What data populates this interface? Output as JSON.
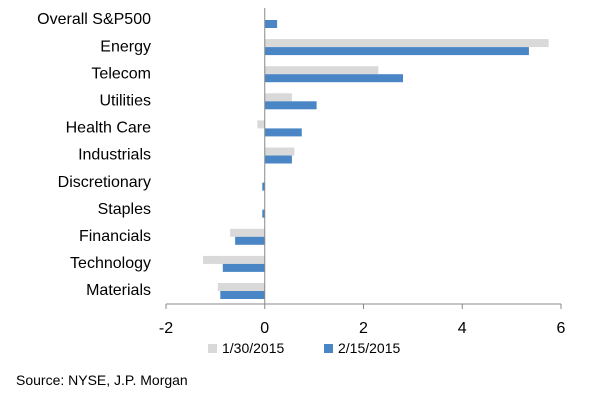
{
  "chart_data": {
    "type": "bar",
    "orientation": "horizontal",
    "categories": [
      "Overall S&P500",
      "Energy",
      "Telecom",
      "Utilities",
      "Health Care",
      "Industrials",
      "Discretionary",
      "Staples",
      "Financials",
      "Technology",
      "Materials"
    ],
    "series": [
      {
        "name": "1/30/2015",
        "color": "#d9d9d9",
        "values": [
          0.0,
          5.75,
          2.3,
          0.55,
          -0.15,
          0.6,
          0.0,
          0.0,
          -0.7,
          -1.25,
          -0.95
        ]
      },
      {
        "name": "2/15/2015",
        "color": "#4a86c5",
        "values": [
          0.25,
          5.35,
          2.8,
          1.05,
          0.75,
          0.55,
          -0.05,
          -0.05,
          -0.6,
          -0.85,
          -0.9
        ]
      }
    ],
    "xlim": [
      -2,
      6
    ],
    "xticks": [
      "-2",
      "0",
      "2",
      "4",
      "6"
    ],
    "grid": false,
    "legend_position": "bottom"
  },
  "source": "Source: NYSE, J.P. Morgan"
}
